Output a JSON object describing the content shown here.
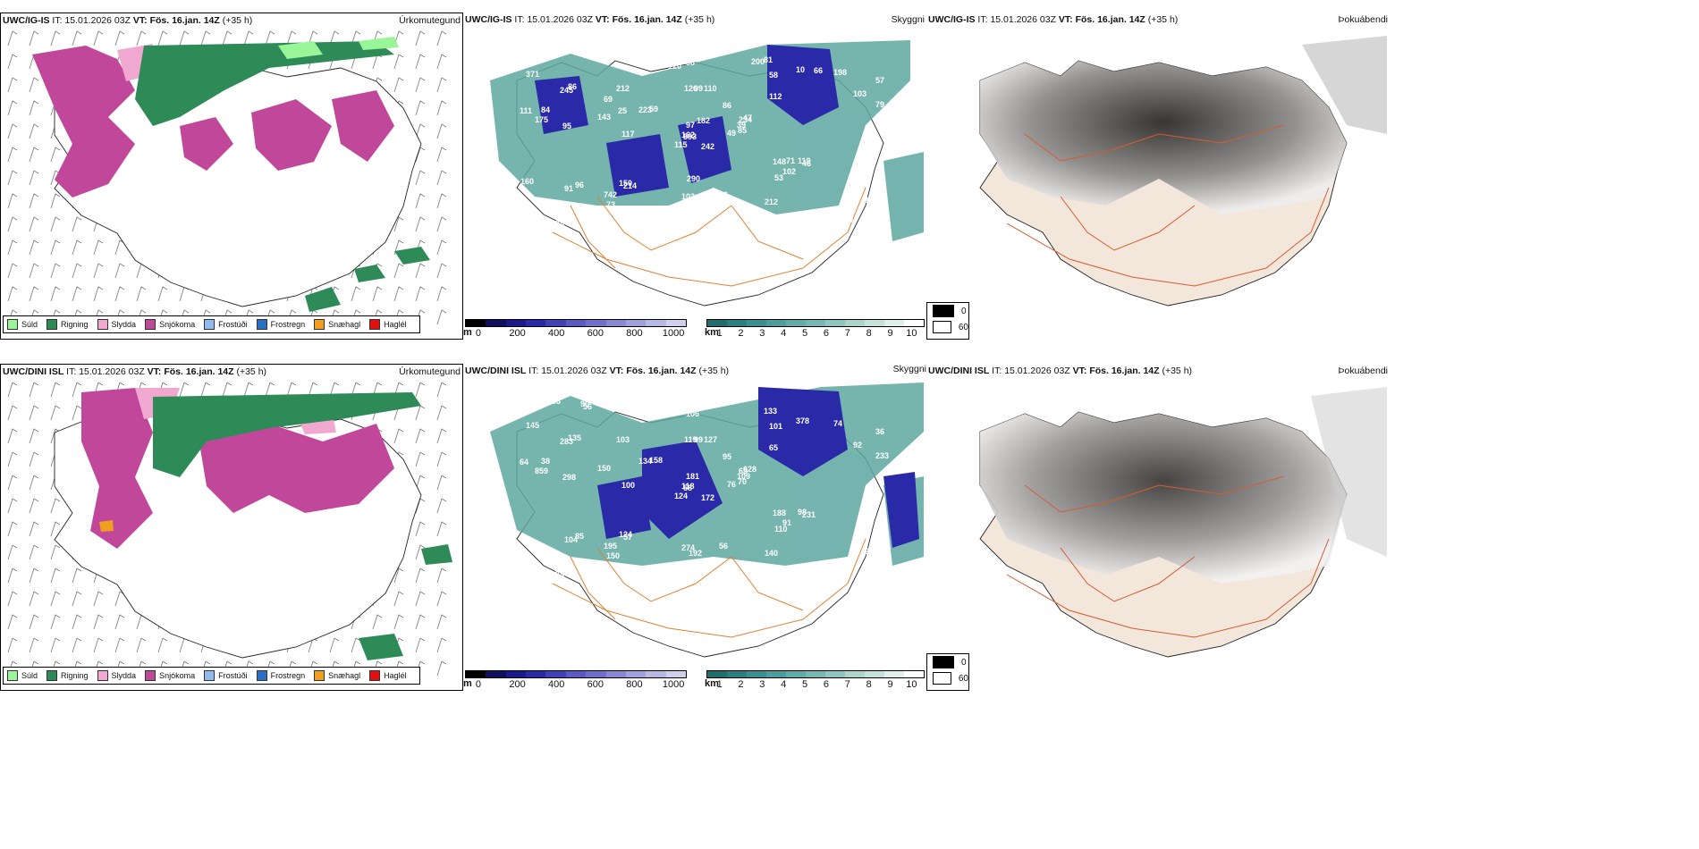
{
  "rows": [
    {
      "model": "UWC/IG-IS",
      "it": "15.01.2026 03Z",
      "vt_label": "VT:",
      "vt": "Fös. 16.jan. 14Z",
      "lead": "(+35 h)",
      "it_label": "IT:"
    },
    {
      "model": "UWC/DINI ISL",
      "it": "15.01.2026 03Z",
      "vt_label": "VT:",
      "vt": "Fös. 16.jan. 14Z",
      "lead": "(+35 h)",
      "it_label": "IT:"
    }
  ],
  "panel_titles": {
    "precip": "Úrkomutegund",
    "cloud": "Skyggni",
    "fog": "Þokuábendi"
  },
  "precip_legend": [
    {
      "label": "Súld",
      "color": "#98f598"
    },
    {
      "label": "Rigning",
      "color": "#2e8b57"
    },
    {
      "label": "Slydda",
      "color": "#f0a8d0"
    },
    {
      "label": "Snjókoma",
      "color": "#c0479a"
    },
    {
      "label": "Frostúði",
      "color": "#8fbbee"
    },
    {
      "label": "Frostregn",
      "color": "#2a6fc4"
    },
    {
      "label": "Snæhagl",
      "color": "#f0a020"
    },
    {
      "label": "Haglél",
      "color": "#e01010"
    }
  ],
  "colorbar_m": {
    "unit": "m",
    "ticks": [
      "0",
      "200",
      "400",
      "600",
      "800",
      "1000"
    ],
    "colors": [
      "#000000",
      "#101060",
      "#1a1a8c",
      "#2a2aa8",
      "#4040b8",
      "#5a5ac4",
      "#7070cc",
      "#8888d4",
      "#a0a0dc",
      "#b8b8e4",
      "#d0d0ec"
    ]
  },
  "colorbar_km": {
    "unit": "km",
    "ticks": [
      "1",
      "2",
      "3",
      "4",
      "5",
      "6",
      "7",
      "8",
      "9",
      "10"
    ],
    "colors": [
      "#1e6e6e",
      "#2a8080",
      "#3a9090",
      "#4c9e9e",
      "#60aca8",
      "#78b8b4",
      "#90c6c0",
      "#aad4cc",
      "#c4e2da",
      "#e0f0ea",
      "#ffffff"
    ]
  },
  "fog_legend": [
    {
      "label": "0",
      "color": "#000000"
    },
    {
      "label": "60",
      "color": "#ffffff"
    }
  ],
  "cloud_labels_top": [
    "242",
    "245",
    "593",
    "164",
    "234",
    "214",
    "81",
    "110",
    "58",
    "49",
    "142",
    "91",
    "95",
    "57",
    "115",
    "112",
    "130",
    "126",
    "86",
    "96",
    "59",
    "78",
    "73",
    "99",
    "47",
    "46",
    "86",
    "98",
    "175",
    "148",
    "79",
    "162",
    "103",
    "97",
    "212",
    "10",
    "150",
    "120",
    "104",
    "119",
    "93",
    "223",
    "143",
    "53",
    "66",
    "111",
    "39",
    "238",
    "110",
    "85",
    "91",
    "103",
    "371",
    "102",
    "212",
    "742",
    "172",
    "80",
    "56",
    "198",
    "116",
    "117",
    "84",
    "69",
    "66",
    "93",
    "200",
    "120",
    "182",
    "160",
    "290",
    "2",
    "71",
    "25"
  ],
  "cloud_labels_bottom": [
    "172",
    "283",
    "58",
    "63",
    "65",
    "57",
    "133",
    "127",
    "101",
    "76",
    "56",
    "186",
    "298",
    "36",
    "124",
    "65",
    "130",
    "119",
    "95",
    "85",
    "158",
    "97",
    "150",
    "99",
    "628",
    "231",
    "135",
    "106",
    "859",
    "188",
    "233",
    "118",
    "274",
    "181",
    "103",
    "378",
    "124",
    "39",
    "292",
    "98",
    "45",
    "134",
    "150",
    "110",
    "84",
    "64",
    "109",
    "174",
    "192",
    "70",
    "104",
    "92",
    "145",
    "91",
    "140",
    "195",
    "90",
    "593",
    "56",
    "74",
    "69",
    "100",
    "38"
  ]
}
